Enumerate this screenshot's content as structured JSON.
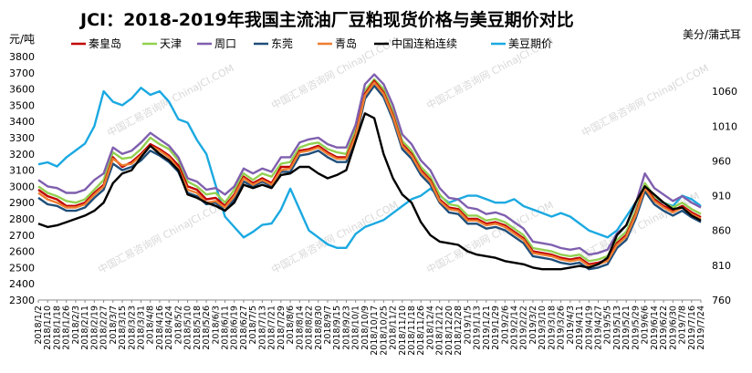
{
  "chart_data": {
    "type": "line",
    "title": "JCI：2018-2019年我国主流油厂豆粕现货价格与美豆期价对比",
    "left_unit": "元/吨",
    "right_unit": "美分/蒲式耳",
    "watermark": "中国汇易咨询网 ChinaJCI.COM",
    "legend_position": "top",
    "grid": false,
    "y_left": {
      "min": 2300,
      "max": 3800,
      "ticks": [
        2300,
        2400,
        2500,
        2600,
        2700,
        2800,
        2900,
        3000,
        3100,
        3200,
        3300,
        3400,
        3500,
        3600,
        3700,
        3800
      ]
    },
    "y_right": {
      "min": 760,
      "max": 1110,
      "ticks": [
        760,
        810,
        860,
        910,
        960,
        1010,
        1060
      ]
    },
    "x_tick_labels": [
      "2018/1/2",
      "2018/1/10",
      "2018/1/18",
      "2018/1/26",
      "2018/2/3",
      "2018/2/11",
      "2018/2/19",
      "2018/2/27",
      "2018/3/7",
      "2018/3/15",
      "2018/3/23",
      "2018/3/31",
      "2018/4/8",
      "2018/4/16",
      "2018/4/24",
      "2018/5/2",
      "2018/5/10",
      "2018/5/18",
      "2018/5/26",
      "2018/6/3",
      "2018/6/11",
      "2018/6/19",
      "2018/6/27",
      "2018/7/5",
      "2018/7/13",
      "2018/7/21",
      "2018/7/29",
      "2018/8/6",
      "2018/8/14",
      "2018/8/22",
      "2018/8/30",
      "2018/9/7",
      "2018/9/15",
      "2018/9/23",
      "2018/10/1",
      "2018/10/9",
      "2018/10/17",
      "2018/10/25",
      "2018/11/2",
      "2018/11/10",
      "2018/11/18",
      "2018/11/26",
      "2018/12/4",
      "2018/12/12",
      "2018/12/20",
      "2018/12/28",
      "2019/1/5",
      "2019/1/13",
      "2019/1/21",
      "2019/1/29",
      "2019/2/6",
      "2019/2/14",
      "2019/2/22",
      "2019/3/2",
      "2019/3/10",
      "2019/3/18",
      "2019/3/26",
      "2019/4/3",
      "2019/4/11",
      "2019/4/19",
      "2019/4/27",
      "2019/5/5",
      "2019/5/13",
      "2019/5/21",
      "2019/5/29",
      "2019/6/6",
      "2019/6/14",
      "2019/6/22",
      "2019/6/30",
      "2019/7/8",
      "2019/7/16",
      "2019/7/24"
    ],
    "series": [
      {
        "name": "秦皇岛",
        "color": "#c00000",
        "axis": "left",
        "values": [
          2980,
          2940,
          2920,
          2880,
          2880,
          2900,
          2960,
          3010,
          3180,
          3120,
          3150,
          3200,
          3260,
          3230,
          3190,
          3130,
          3000,
          2980,
          2920,
          2930,
          2880,
          2950,
          3060,
          3020,
          3050,
          3020,
          3120,
          3120,
          3220,
          3230,
          3250,
          3210,
          3180,
          3180,
          3320,
          3570,
          3650,
          3580,
          3440,
          3260,
          3200,
          3100,
          3040,
          2920,
          2870,
          2860,
          2800,
          2800,
          2770,
          2780,
          2760,
          2720,
          2680,
          2600,
          2590,
          2580,
          2560,
          2550,
          2560,
          2520,
          2530,
          2550,
          2650,
          2700,
          2830,
          3000,
          2920,
          2880,
          2850,
          2880,
          2840,
          2810
        ]
      },
      {
        "name": "天津",
        "color": "#92d050",
        "axis": "left",
        "values": [
          3000,
          2960,
          2940,
          2910,
          2900,
          2920,
          2980,
          3040,
          3210,
          3170,
          3180,
          3230,
          3300,
          3260,
          3230,
          3160,
          3030,
          3000,
          2950,
          2960,
          2900,
          2980,
          3080,
          3040,
          3080,
          3060,
          3140,
          3150,
          3240,
          3260,
          3270,
          3230,
          3210,
          3200,
          3350,
          3590,
          3660,
          3600,
          3460,
          3280,
          3220,
          3120,
          3060,
          2950,
          2890,
          2880,
          2820,
          2820,
          2790,
          2800,
          2780,
          2740,
          2700,
          2620,
          2610,
          2600,
          2580,
          2570,
          2580,
          2540,
          2550,
          2570,
          2670,
          2720,
          2850,
          3020,
          2940,
          2900,
          2870,
          2900,
          2860,
          2830
        ]
      },
      {
        "name": "周口",
        "color": "#7f5fae",
        "axis": "left",
        "values": [
          3040,
          3000,
          2990,
          2960,
          2960,
          2980,
          3040,
          3080,
          3240,
          3200,
          3220,
          3270,
          3330,
          3290,
          3250,
          3180,
          3050,
          3030,
          2980,
          2990,
          2950,
          3000,
          3110,
          3080,
          3110,
          3090,
          3180,
          3180,
          3270,
          3290,
          3300,
          3260,
          3240,
          3240,
          3380,
          3630,
          3690,
          3630,
          3500,
          3320,
          3260,
          3160,
          3100,
          2990,
          2930,
          2920,
          2870,
          2860,
          2830,
          2840,
          2820,
          2780,
          2740,
          2660,
          2650,
          2640,
          2620,
          2610,
          2620,
          2580,
          2590,
          2610,
          2710,
          2760,
          2890,
          3080,
          2990,
          2950,
          2910,
          2940,
          2900,
          2870
        ]
      },
      {
        "name": "东莞",
        "color": "#1f4e79",
        "axis": "left",
        "values": [
          2930,
          2890,
          2880,
          2850,
          2850,
          2870,
          2930,
          2980,
          3140,
          3100,
          3120,
          3160,
          3220,
          3190,
          3150,
          3090,
          2960,
          2940,
          2890,
          2900,
          2850,
          2920,
          3030,
          3000,
          3030,
          3000,
          3090,
          3090,
          3190,
          3200,
          3220,
          3180,
          3150,
          3150,
          3290,
          3540,
          3620,
          3550,
          3410,
          3230,
          3170,
          3070,
          3010,
          2900,
          2840,
          2830,
          2770,
          2770,
          2740,
          2750,
          2730,
          2690,
          2650,
          2570,
          2560,
          2550,
          2530,
          2520,
          2530,
          2490,
          2500,
          2520,
          2620,
          2670,
          2800,
          2970,
          2890,
          2850,
          2820,
          2850,
          2810,
          2780
        ]
      },
      {
        "name": "青岛",
        "color": "#ed7d31",
        "axis": "left",
        "values": [
          2960,
          2920,
          2900,
          2870,
          2870,
          2890,
          2950,
          3000,
          3170,
          3130,
          3140,
          3190,
          3250,
          3220,
          3180,
          3110,
          2980,
          2960,
          2900,
          2910,
          2870,
          2940,
          3050,
          3010,
          3040,
          3010,
          3100,
          3110,
          3210,
          3220,
          3240,
          3200,
          3170,
          3170,
          3310,
          3560,
          3640,
          3570,
          3430,
          3250,
          3190,
          3090,
          3030,
          2910,
          2860,
          2850,
          2790,
          2790,
          2760,
          2770,
          2750,
          2710,
          2670,
          2590,
          2580,
          2570,
          2550,
          2540,
          2550,
          2510,
          2520,
          2540,
          2640,
          2690,
          2820,
          2990,
          2910,
          2870,
          2840,
          2870,
          2830,
          2800
        ]
      },
      {
        "name": "中国连粕连续",
        "color": "#000000",
        "axis": "left",
        "values": [
          2770,
          2750,
          2760,
          2780,
          2800,
          2820,
          2850,
          2900,
          3020,
          3080,
          3100,
          3180,
          3250,
          3200,
          3160,
          3100,
          2950,
          2930,
          2900,
          2880,
          2850,
          2900,
          3010,
          2990,
          3010,
          2990,
          3070,
          3080,
          3120,
          3120,
          3080,
          3050,
          3070,
          3100,
          3280,
          3450,
          3420,
          3200,
          3050,
          2950,
          2900,
          2780,
          2700,
          2660,
          2650,
          2640,
          2600,
          2580,
          2570,
          2560,
          2540,
          2530,
          2520,
          2500,
          2490,
          2490,
          2490,
          2500,
          2510,
          2500,
          2520,
          2560,
          2700,
          2760,
          2900,
          3000,
          2950,
          2900,
          2860,
          2870,
          2820,
          2790
        ]
      },
      {
        "name": "美豆期价",
        "color": "#1ba9e1",
        "axis": "right",
        "values": [
          955,
          958,
          952,
          965,
          975,
          985,
          1010,
          1060,
          1045,
          1040,
          1050,
          1065,
          1055,
          1060,
          1045,
          1020,
          1015,
          990,
          970,
          925,
          880,
          865,
          850,
          858,
          868,
          870,
          890,
          920,
          890,
          860,
          850,
          840,
          835,
          835,
          855,
          865,
          870,
          875,
          885,
          895,
          905,
          910,
          920,
          910,
          900,
          905,
          910,
          910,
          905,
          900,
          900,
          905,
          895,
          890,
          885,
          880,
          885,
          880,
          870,
          860,
          855,
          850,
          860,
          880,
          900,
          915,
          905,
          900,
          895,
          910,
          905,
          895
        ]
      }
    ]
  }
}
